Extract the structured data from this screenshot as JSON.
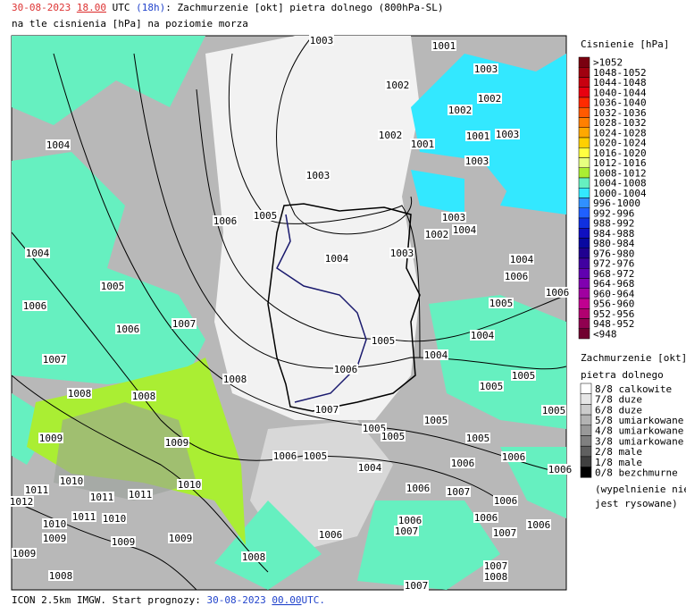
{
  "header": {
    "date": "30-08-2023",
    "time": "18.00",
    "zone": "UTC",
    "lead": "(18h)",
    "title": ": Zachmurzenie [okt] pietra dolnego (800hPa-SL)",
    "subtitle": "na tle cisnienia [hPa] na poziomie morza"
  },
  "pressure_legend": {
    "title": "Cisnienie [hPa]",
    "items": [
      {
        "label": ">1052",
        "color": "#7a0010"
      },
      {
        "label": "1048-1052",
        "color": "#a00010"
      },
      {
        "label": "1044-1048",
        "color": "#c80010"
      },
      {
        "label": "1040-1044",
        "color": "#e80010"
      },
      {
        "label": "1036-1040",
        "color": "#ff2a00"
      },
      {
        "label": "1032-1036",
        "color": "#ff5a00"
      },
      {
        "label": "1028-1032",
        "color": "#ff8000"
      },
      {
        "label": "1024-1028",
        "color": "#ffa800"
      },
      {
        "label": "1020-1024",
        "color": "#ffd000"
      },
      {
        "label": "1016-1020",
        "color": "#ffff40"
      },
      {
        "label": "1012-1016",
        "color": "#e6ff80"
      },
      {
        "label": "1008-1012",
        "color": "#aaee33"
      },
      {
        "label": "1004-1008",
        "color": "#66f0c0"
      },
      {
        "label": "1000-1004",
        "color": "#33e8ff"
      },
      {
        "label": "996-1000",
        "color": "#3090ff"
      },
      {
        "label": "992-996",
        "color": "#2060ff"
      },
      {
        "label": "988-992",
        "color": "#1030e0"
      },
      {
        "label": "984-988",
        "color": "#1010c0"
      },
      {
        "label": "980-984",
        "color": "#0808a0"
      },
      {
        "label": "976-980",
        "color": "#200090"
      },
      {
        "label": "972-976",
        "color": "#4000a0"
      },
      {
        "label": "968-972",
        "color": "#6000b0"
      },
      {
        "label": "964-968",
        "color": "#8000b0"
      },
      {
        "label": "960-964",
        "color": "#a000a0"
      },
      {
        "label": "956-960",
        "color": "#c00090"
      },
      {
        "label": "952-956",
        "color": "#b00070"
      },
      {
        "label": "948-952",
        "color": "#900050"
      },
      {
        "label": "<948",
        "color": "#700030"
      }
    ]
  },
  "cloud_legend": {
    "title": "Zachmurzenie [okt]",
    "subtitle": "pietra dolnego",
    "items": [
      {
        "label": "8/8 calkowite",
        "color": "#ffffff"
      },
      {
        "label": "7/8 duze",
        "color": "#e6e6e6"
      },
      {
        "label": "6/8 duze",
        "color": "#cccccc"
      },
      {
        "label": "5/8 umiarkowane",
        "color": "#b3b3b3"
      },
      {
        "label": "4/8 umiarkowane",
        "color": "#999999"
      },
      {
        "label": "3/8 umiarkowane",
        "color": "#808080"
      },
      {
        "label": "2/8 male",
        "color": "#606060"
      },
      {
        "label": "1/8 male",
        "color": "#404040"
      },
      {
        "label": "0/8 bezchmurne",
        "color": "#000000"
      }
    ],
    "note": [
      "(wypelnienie nie",
      "jest rysowane)"
    ]
  },
  "isobar_labels": [
    "1003",
    "1001",
    "1003",
    "1002",
    "1002",
    "1002",
    "1002",
    "1001",
    "1001",
    "1003",
    "1004",
    "1003",
    "1003",
    "1005",
    "1006",
    "1003",
    "1002",
    "1004",
    "1004",
    "1004",
    "1003",
    "1004",
    "1005",
    "1006",
    "1006",
    "1006",
    "1005",
    "1006",
    "1007",
    "1005",
    "1004",
    "1007",
    "1004",
    "1006",
    "1005",
    "1008",
    "1005",
    "1008",
    "1008",
    "1007",
    "1005",
    "1005",
    "1005",
    "1005",
    "1009",
    "1009",
    "1005",
    "1006",
    "1005",
    "1006",
    "1006",
    "1004",
    "1006",
    "1010",
    "1010",
    "1011",
    "1011",
    "1011",
    "1006",
    "1007",
    "1006",
    "1012",
    "1011",
    "1010",
    "1010",
    "1006",
    "1007",
    "1006",
    "1006",
    "1009",
    "1009",
    "1009",
    "1006",
    "1007",
    "1009",
    "1008",
    "1008",
    "1007",
    "1008",
    "1007"
  ],
  "footer": {
    "source": "ICON 2.5km IMGW. Start prognozy:",
    "date": "30-08-2023",
    "time": "00.00",
    "zone": "UTC."
  }
}
